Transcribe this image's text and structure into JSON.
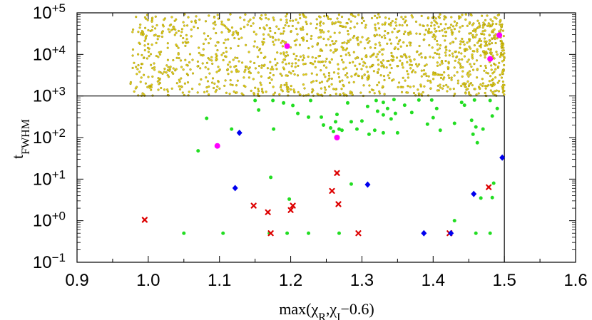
{
  "chart_data": {
    "type": "scatter",
    "title": "",
    "xlabel": "max(χR,χI−0.6)",
    "xlabel_parts": {
      "prefix": "max(χ",
      "sub1": "R",
      "mid": ",χ",
      "sub2": "I",
      "suffix": "−0.6)"
    },
    "ylabel": "tFWHM",
    "ylabel_parts": {
      "main": "t",
      "sub": "FWHM"
    },
    "xlim": [
      0.9,
      1.6
    ],
    "ylim_log10": [
      -1,
      5
    ],
    "yscale": "log",
    "x_ticks": [
      {
        "value": 0.9,
        "label": "0.9"
      },
      {
        "value": 1.0,
        "label": "1.0"
      },
      {
        "value": 1.1,
        "label": "1.1"
      },
      {
        "value": 1.2,
        "label": "1.2"
      },
      {
        "value": 1.3,
        "label": "1.3"
      },
      {
        "value": 1.4,
        "label": "1.4"
      },
      {
        "value": 1.5,
        "label": "1.5"
      },
      {
        "value": 1.6,
        "label": "1.6"
      }
    ],
    "y_ticks": [
      {
        "exp": -1,
        "base": "10",
        "sup": "−1"
      },
      {
        "exp": 0,
        "base": "10",
        "sup": "+0"
      },
      {
        "exp": 1,
        "base": "10",
        "sup": "+1"
      },
      {
        "exp": 2,
        "base": "10",
        "sup": "+2"
      },
      {
        "exp": 3,
        "base": "10",
        "sup": "+3"
      },
      {
        "exp": 4,
        "base": "10",
        "sup": "+4"
      },
      {
        "exp": 5,
        "base": "10",
        "sup": "+5"
      }
    ],
    "region_boundary": {
      "x_max": 1.5,
      "t_min": 1000
    },
    "colors": {
      "yellow": "#e6d11a",
      "yellow_edge": "#8a7d00",
      "green": "#22dd22",
      "magenta": "#ff00ff",
      "blue": "#0000ee",
      "red": "#dd0000"
    },
    "series": [
      {
        "name": "magenta",
        "marker": "circle",
        "points": [
          [
            1.195,
            15800
          ],
          [
            1.493,
            29000
          ],
          [
            1.48,
            7800
          ],
          [
            1.265,
            100
          ],
          [
            1.097,
            63
          ]
        ]
      },
      {
        "name": "blue",
        "marker": "diamond",
        "points": [
          [
            1.128,
            130
          ],
          [
            1.497,
            33
          ],
          [
            1.122,
            6.1
          ],
          [
            1.308,
            7.4
          ],
          [
            1.457,
            4.4
          ],
          [
            1.387,
            0.5
          ],
          [
            1.425,
            0.5
          ]
        ]
      },
      {
        "name": "red",
        "marker": "cross",
        "points": [
          [
            0.995,
            1.05
          ],
          [
            1.148,
            2.3
          ],
          [
            1.168,
            1.6
          ],
          [
            1.172,
            0.5
          ],
          [
            1.2,
            1.8
          ],
          [
            1.203,
            2.3
          ],
          [
            1.258,
            5.2
          ],
          [
            1.265,
            14
          ],
          [
            1.267,
            2.5
          ],
          [
            1.295,
            0.5
          ],
          [
            1.423,
            0.5
          ],
          [
            1.478,
            6.4
          ]
        ]
      },
      {
        "name": "green",
        "marker": "dot",
        "points": [
          [
            1.05,
            0.5
          ],
          [
            1.105,
            0.5
          ],
          [
            1.17,
            0.5
          ],
          [
            1.195,
            0.5
          ],
          [
            1.225,
            0.5
          ],
          [
            1.268,
            0.5
          ],
          [
            1.46,
            0.5
          ],
          [
            1.48,
            0.5
          ],
          [
            1.43,
            1.0
          ],
          [
            1.198,
            3.3
          ],
          [
            1.172,
            11
          ],
          [
            1.485,
            8.0
          ],
          [
            1.285,
            7.6
          ],
          [
            1.483,
            3.6
          ],
          [
            1.467,
            3.5
          ],
          [
            1.082,
            290
          ],
          [
            1.07,
            48
          ],
          [
            1.117,
            160
          ],
          [
            1.176,
            160
          ],
          [
            1.175,
            780
          ],
          [
            1.19,
            680
          ],
          [
            1.21,
            380
          ],
          [
            1.228,
            780
          ],
          [
            1.15,
            780
          ],
          [
            1.155,
            460
          ],
          [
            1.203,
            590
          ],
          [
            1.243,
            310
          ],
          [
            1.256,
            170
          ],
          [
            1.26,
            140
          ],
          [
            1.263,
            240
          ],
          [
            1.268,
            160
          ],
          [
            1.285,
            240
          ],
          [
            1.3,
            250
          ],
          [
            1.318,
            150
          ],
          [
            1.322,
            430
          ],
          [
            1.33,
            350
          ],
          [
            1.336,
            500
          ],
          [
            1.341,
            280
          ],
          [
            1.347,
            380
          ],
          [
            1.33,
            700
          ],
          [
            1.345,
            820
          ],
          [
            1.36,
            600
          ],
          [
            1.37,
            400
          ],
          [
            1.38,
            800
          ],
          [
            1.392,
            210
          ],
          [
            1.4,
            300
          ],
          [
            1.41,
            150
          ],
          [
            1.43,
            220
          ],
          [
            1.444,
            600
          ],
          [
            1.454,
            260
          ],
          [
            1.458,
            800
          ],
          [
            1.48,
            780
          ],
          [
            1.47,
            160
          ],
          [
            1.483,
            330
          ],
          [
            1.456,
            120
          ],
          [
            1.462,
            75
          ],
          [
            1.35,
            130
          ],
          [
            1.246,
            200
          ],
          [
            1.272,
            150
          ],
          [
            1.31,
            120
          ],
          [
            1.33,
            130
          ],
          [
            1.225,
            310
          ],
          [
            1.405,
            500
          ],
          [
            1.265,
            360
          ],
          [
            1.28,
            680
          ],
          [
            1.49,
            500
          ],
          [
            1.293,
            160
          ],
          [
            1.308,
            560
          ],
          [
            1.398,
            800
          ],
          [
            1.46,
            180
          ],
          [
            1.44,
            700
          ],
          [
            1.32,
            780
          ]
        ]
      },
      {
        "name": "yellow",
        "marker": "small-circle",
        "generated": true,
        "count": 1500,
        "x_range": [
          0.975,
          1.5
        ],
        "t_range": [
          1000,
          100000
        ]
      }
    ]
  }
}
